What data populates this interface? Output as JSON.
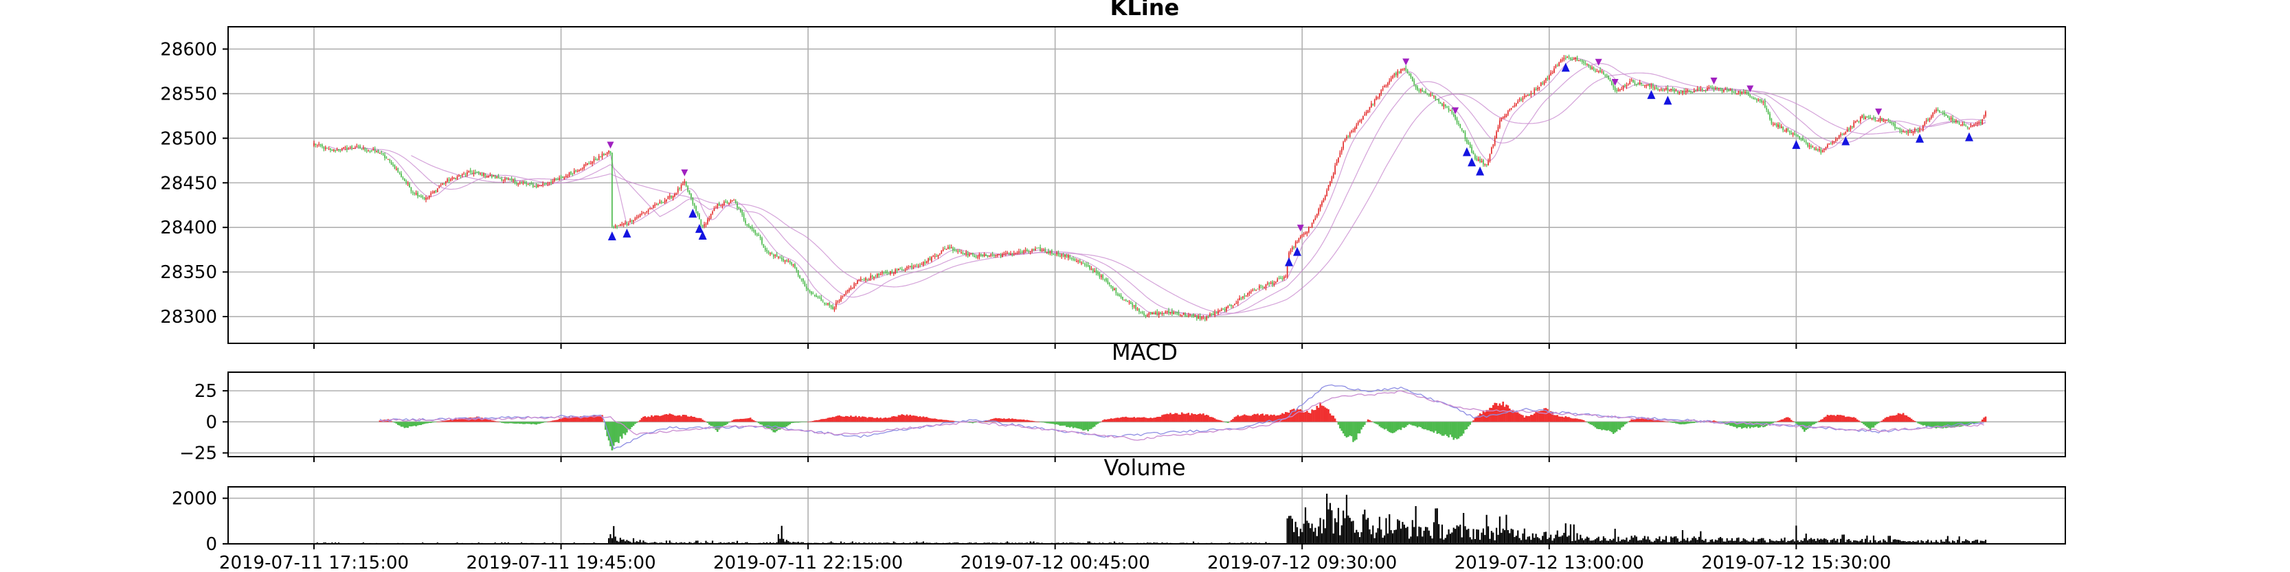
{
  "chart_data": [
    {
      "type": "candlestick",
      "title": "KLine",
      "ylim": [
        28270,
        28625
      ],
      "yticks": [
        28300,
        28350,
        28400,
        28450,
        28500,
        28550,
        28600
      ],
      "grid": true,
      "colors": {
        "up": "#e32b2b",
        "down": "#4dba4d",
        "ma": "#c98bd0",
        "marker_buy": "#1414e0",
        "marker_sell": "#a020c0"
      },
      "close_path": [
        [
          0,
          28494
        ],
        [
          10,
          28486
        ],
        [
          25,
          28490
        ],
        [
          40,
          28484
        ],
        [
          48,
          28470
        ],
        [
          60,
          28440
        ],
        [
          68,
          28432
        ],
        [
          80,
          28452
        ],
        [
          95,
          28462
        ],
        [
          108,
          28457
        ],
        [
          120,
          28452
        ],
        [
          135,
          28446
        ],
        [
          150,
          28455
        ],
        [
          165,
          28470
        ],
        [
          178,
          28484
        ],
        [
          180,
          28484
        ],
        [
          181,
          28400
        ],
        [
          190,
          28405
        ],
        [
          205,
          28422
        ],
        [
          218,
          28436
        ],
        [
          225,
          28450
        ],
        [
          232,
          28418
        ],
        [
          236,
          28400
        ],
        [
          245,
          28425
        ],
        [
          255,
          28430
        ],
        [
          262,
          28406
        ],
        [
          270,
          28390
        ],
        [
          275,
          28372
        ],
        [
          290,
          28360
        ],
        [
          300,
          28328
        ],
        [
          315,
          28310
        ],
        [
          330,
          28340
        ],
        [
          350,
          28350
        ],
        [
          370,
          28360
        ],
        [
          385,
          28378
        ],
        [
          400,
          28368
        ],
        [
          420,
          28370
        ],
        [
          440,
          28375
        ],
        [
          460,
          28366
        ],
        [
          475,
          28350
        ],
        [
          490,
          28322
        ],
        [
          505,
          28302
        ],
        [
          520,
          28305
        ],
        [
          540,
          28298
        ],
        [
          555,
          28310
        ],
        [
          570,
          28330
        ],
        [
          585,
          28340
        ],
        [
          590,
          28345
        ],
        [
          592,
          28370
        ],
        [
          597,
          28385
        ],
        [
          605,
          28400
        ],
        [
          615,
          28440
        ],
        [
          625,
          28495
        ],
        [
          635,
          28520
        ],
        [
          645,
          28545
        ],
        [
          655,
          28570
        ],
        [
          662,
          28578
        ],
        [
          670,
          28556
        ],
        [
          680,
          28546
        ],
        [
          690,
          28530
        ],
        [
          698,
          28505
        ],
        [
          705,
          28478
        ],
        [
          712,
          28470
        ],
        [
          720,
          28520
        ],
        [
          730,
          28540
        ],
        [
          740,
          28552
        ],
        [
          750,
          28570
        ],
        [
          758,
          28590
        ],
        [
          765,
          28590
        ],
        [
          775,
          28580
        ],
        [
          785,
          28572
        ],
        [
          790,
          28552
        ],
        [
          800,
          28564
        ],
        [
          815,
          28556
        ],
        [
          830,
          28552
        ],
        [
          850,
          28556
        ],
        [
          870,
          28550
        ],
        [
          880,
          28540
        ],
        [
          885,
          28518
        ],
        [
          895,
          28508
        ],
        [
          905,
          28495
        ],
        [
          915,
          28485
        ],
        [
          925,
          28500
        ],
        [
          940,
          28524
        ],
        [
          955,
          28520
        ],
        [
          965,
          28506
        ],
        [
          975,
          28510
        ],
        [
          985,
          28532
        ],
        [
          995,
          28520
        ],
        [
          1005,
          28512
        ],
        [
          1012,
          28518
        ],
        [
          1015,
          28530
        ]
      ],
      "ma_windows": [
        10,
        30,
        60
      ],
      "markers_buy": [
        181,
        190,
        230,
        234,
        236,
        592,
        597,
        700,
        703,
        708,
        760,
        812,
        822,
        900,
        930,
        975,
        1005
      ],
      "markers_sell": [
        180,
        225,
        599,
        663,
        693,
        780,
        790,
        850,
        872,
        950
      ]
    },
    {
      "type": "bar",
      "title": "MACD",
      "ylim": [
        -28,
        40
      ],
      "yticks": [
        -25,
        0,
        25
      ],
      "grid": true,
      "colors": {
        "positive": "#f03030",
        "negative": "#4dba4d",
        "diff": "#8d8de3",
        "dea": "#c98bd0"
      },
      "value_path": [
        [
          0,
          0
        ],
        [
          35,
          0
        ],
        [
          45,
          2
        ],
        [
          55,
          -5
        ],
        [
          70,
          -1
        ],
        [
          85,
          2
        ],
        [
          100,
          4
        ],
        [
          115,
          -1
        ],
        [
          135,
          -2
        ],
        [
          155,
          4
        ],
        [
          175,
          5
        ],
        [
          180,
          -22
        ],
        [
          190,
          -8
        ],
        [
          200,
          4
        ],
        [
          215,
          6
        ],
        [
          225,
          5
        ],
        [
          235,
          3
        ],
        [
          245,
          -7
        ],
        [
          255,
          2
        ],
        [
          265,
          3
        ],
        [
          280,
          -9
        ],
        [
          290,
          -1
        ],
        [
          300,
          0
        ],
        [
          320,
          5
        ],
        [
          345,
          3
        ],
        [
          360,
          6
        ],
        [
          380,
          2
        ],
        [
          400,
          -1
        ],
        [
          415,
          3
        ],
        [
          430,
          2
        ],
        [
          450,
          -2
        ],
        [
          470,
          -7
        ],
        [
          480,
          2
        ],
        [
          495,
          4
        ],
        [
          510,
          3
        ],
        [
          520,
          7
        ],
        [
          540,
          6
        ],
        [
          555,
          -1
        ],
        [
          560,
          5
        ],
        [
          575,
          6
        ],
        [
          585,
          5
        ],
        [
          595,
          10
        ],
        [
          605,
          8
        ],
        [
          612,
          15
        ],
        [
          620,
          3
        ],
        [
          625,
          -10
        ],
        [
          632,
          -15
        ],
        [
          640,
          2
        ],
        [
          648,
          -4
        ],
        [
          655,
          -10
        ],
        [
          665,
          -2
        ],
        [
          675,
          -6
        ],
        [
          685,
          -10
        ],
        [
          695,
          -14
        ],
        [
          705,
          3
        ],
        [
          712,
          10
        ],
        [
          720,
          16
        ],
        [
          735,
          4
        ],
        [
          748,
          10
        ],
        [
          755,
          5
        ],
        [
          770,
          2
        ],
        [
          780,
          -6
        ],
        [
          790,
          -9
        ],
        [
          800,
          2
        ],
        [
          810,
          3
        ],
        [
          830,
          -2
        ],
        [
          850,
          1
        ],
        [
          865,
          -5
        ],
        [
          880,
          -4
        ],
        [
          895,
          4
        ],
        [
          905,
          -7
        ],
        [
          920,
          6
        ],
        [
          935,
          4
        ],
        [
          945,
          -6
        ],
        [
          955,
          4
        ],
        [
          965,
          7
        ],
        [
          975,
          -2
        ],
        [
          985,
          -5
        ],
        [
          1000,
          -4
        ],
        [
          1012,
          0
        ],
        [
          1015,
          5
        ]
      ],
      "diff_path": [
        [
          0,
          0
        ],
        [
          100,
          3
        ],
        [
          175,
          5
        ],
        [
          182,
          -22
        ],
        [
          210,
          -5
        ],
        [
          280,
          -4
        ],
        [
          330,
          -12
        ],
        [
          400,
          2
        ],
        [
          480,
          -12
        ],
        [
          560,
          -5
        ],
        [
          590,
          3
        ],
        [
          615,
          30
        ],
        [
          640,
          25
        ],
        [
          660,
          27
        ],
        [
          690,
          13
        ],
        [
          705,
          3
        ],
        [
          735,
          10
        ],
        [
          780,
          5
        ],
        [
          850,
          0
        ],
        [
          900,
          -3
        ],
        [
          950,
          -8
        ],
        [
          1015,
          0
        ]
      ],
      "dea_path": [
        [
          0,
          0
        ],
        [
          120,
          3
        ],
        [
          180,
          4
        ],
        [
          195,
          -10
        ],
        [
          260,
          -3
        ],
        [
          320,
          -10
        ],
        [
          400,
          0
        ],
        [
          500,
          -14
        ],
        [
          580,
          -3
        ],
        [
          620,
          20
        ],
        [
          660,
          24
        ],
        [
          700,
          10
        ],
        [
          740,
          8
        ],
        [
          800,
          3
        ],
        [
          880,
          -2
        ],
        [
          950,
          -7
        ],
        [
          1015,
          -2
        ]
      ]
    },
    {
      "type": "bar",
      "title": "Volume",
      "ylim": [
        0,
        2500
      ],
      "yticks": [
        0,
        2000
      ],
      "grid": true,
      "colors": {
        "bar": "#000000"
      },
      "level_path": [
        [
          0,
          30
        ],
        [
          178,
          30
        ],
        [
          180,
          420
        ],
        [
          190,
          150
        ],
        [
          200,
          70
        ],
        [
          280,
          60
        ],
        [
          282,
          480
        ],
        [
          290,
          90
        ],
        [
          300,
          50
        ],
        [
          560,
          50
        ],
        [
          565,
          60
        ],
        [
          575,
          40
        ],
        [
          590,
          30
        ],
        [
          592,
          1050
        ],
        [
          600,
          900
        ],
        [
          608,
          1250
        ],
        [
          615,
          1650
        ],
        [
          625,
          1200
        ],
        [
          640,
          1000
        ],
        [
          670,
          800
        ],
        [
          700,
          650
        ],
        [
          740,
          560
        ],
        [
          760,
          430
        ],
        [
          780,
          320
        ],
        [
          830,
          280
        ],
        [
          870,
          230
        ],
        [
          900,
          220
        ],
        [
          950,
          170
        ],
        [
          1000,
          160
        ],
        [
          1015,
          160
        ]
      ],
      "peaks": [
        [
          615,
          2200
        ],
        [
          627,
          2150
        ],
        [
          602,
          1600
        ],
        [
          638,
          1500
        ],
        [
          653,
          1300
        ],
        [
          720,
          1200
        ],
        [
          760,
          900
        ],
        [
          900,
          800
        ]
      ],
      "x_tick_labels": [
        "2019-07-11 17:15:00",
        "2019-07-11 19:45:00",
        "2019-07-11 22:15:00",
        "2019-07-12 00:45:00",
        "2019-07-12 09:30:00",
        "2019-07-12 13:00:00",
        "2019-07-12 15:30:00"
      ],
      "x_tick_indices": [
        0,
        150,
        300,
        450,
        600,
        750,
        900
      ],
      "x_count": 1016
    }
  ]
}
